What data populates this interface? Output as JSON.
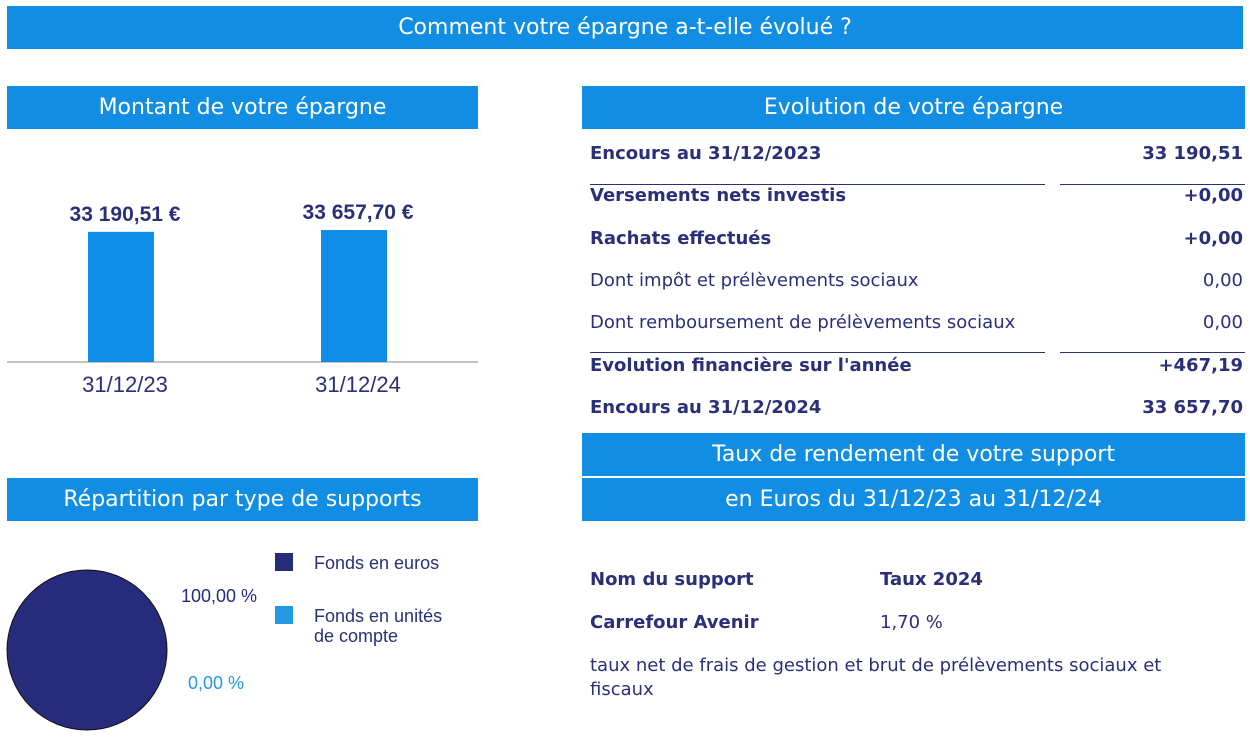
{
  "header": {
    "title": "Comment votre épargne a-t-elle évolué ?"
  },
  "chart_data": [
    {
      "type": "bar",
      "title": "Montant de votre épargne",
      "categories": [
        "31/12/23",
        "31/12/24"
      ],
      "values": [
        33190.51,
        33657.7
      ],
      "value_labels": [
        "33 190,51 €",
        "33 657,70 €"
      ],
      "color": "#0e8ee6"
    },
    {
      "type": "pie",
      "title": "Répartition par type de supports",
      "categories": [
        "Fonds en euros",
        "Fonds en unités de compte"
      ],
      "values": [
        100,
        0
      ],
      "value_labels": [
        "100,00 %",
        "0,00 %"
      ],
      "colors": [
        "#272b7b",
        "#2499e3"
      ]
    }
  ],
  "evolution": {
    "title": "Evolution de votre épargne",
    "rows": [
      {
        "label": "Encours au 31/12/2023",
        "value": "33 190,51"
      },
      {
        "label": "Versements nets investis",
        "value": "+0,00"
      },
      {
        "label": "Rachats effectués",
        "value": "+0,00"
      },
      {
        "label": "Dont impôt et prélèvements sociaux",
        "value": "0,00"
      },
      {
        "label": "Dont remboursement de prélèvements sociaux",
        "value": "0,00"
      },
      {
        "label": "Evolution financière sur l'année",
        "value": "+467,19"
      },
      {
        "label": "Encours au 31/12/2024",
        "value": "33 657,70"
      }
    ]
  },
  "rendement": {
    "title_lines": [
      "Taux de rendement de votre support",
      "en Euros du 31/12/23 au 31/12/24"
    ],
    "columns": [
      "Nom du support",
      "Taux 2024"
    ],
    "rows": [
      [
        "Carrefour Avenir",
        "1,70 %"
      ]
    ],
    "note": "taux net de frais de gestion et brut de prélèvements sociaux et fiscaux"
  }
}
